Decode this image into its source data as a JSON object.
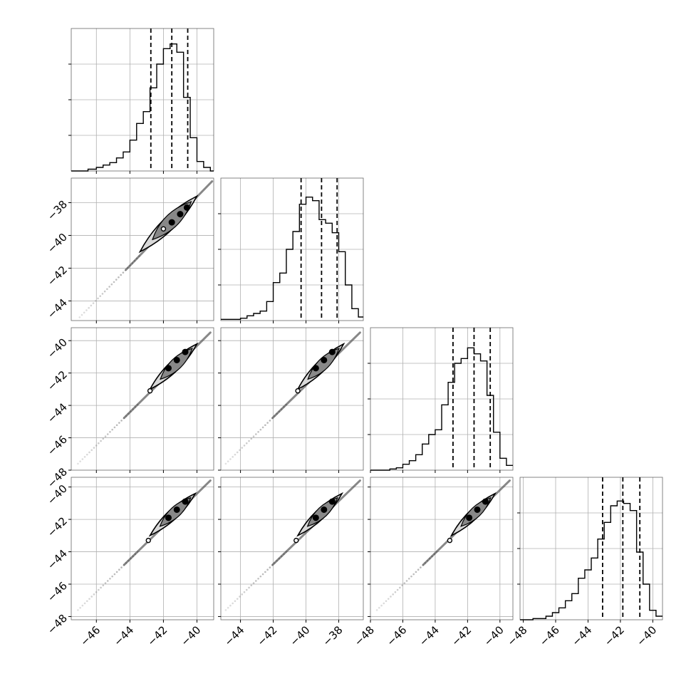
{
  "chart_data": {
    "type": "corner",
    "parameters": 4,
    "grid": true,
    "style": {
      "line_color": "#000000",
      "grid_color": "#b0b0b0",
      "frame_color": "#000000",
      "sample_color": "#888888",
      "contour_fill_outer": "#d8d8d8",
      "contour_fill_inner": "#888888"
    },
    "axes": [
      {
        "index": 0,
        "range": [
          -47.5,
          -39.0
        ],
        "ticks": [
          -46,
          -44,
          -42,
          -40
        ],
        "tick_labels": [
          "−46",
          "−44",
          "−42",
          "−40"
        ],
        "quantiles": [
          -42.75,
          -41.5,
          -40.55
        ],
        "histogram": {
          "bin_edges": [
            -47.5,
            -46.5,
            -46.0,
            -45.6,
            -45.2,
            -44.8,
            -44.4,
            -44.0,
            -43.6,
            -43.2,
            -42.8,
            -42.4,
            -42.0,
            -41.6,
            -41.2,
            -40.8,
            -40.4,
            -40.0,
            -39.6,
            -39.2,
            -39.0
          ],
          "counts": [
            0.0,
            0.015,
            0.03,
            0.05,
            0.07,
            0.11,
            0.16,
            0.26,
            0.4,
            0.5,
            0.7,
            0.9,
            1.03,
            1.07,
            1.0,
            0.62,
            0.28,
            0.08,
            0.03,
            0.0
          ],
          "ylim": [
            0,
            1.2
          ],
          "yticks": [
            0.3,
            0.6,
            0.9
          ]
        }
      },
      {
        "index": 1,
        "range": [
          -45.2,
          -36.5
        ],
        "ticks": [
          -44,
          -42,
          -40,
          -38
        ],
        "tick_labels": [
          "−44",
          "−42",
          "−40",
          "−38"
        ],
        "quantiles": [
          -40.3,
          -39.05,
          -38.1
        ],
        "histogram": {
          "bin_edges": [
            -45.2,
            -44.0,
            -43.6,
            -43.2,
            -42.8,
            -42.4,
            -42.0,
            -41.6,
            -41.2,
            -40.8,
            -40.4,
            -40.0,
            -39.6,
            -39.2,
            -38.8,
            -38.4,
            -38.0,
            -37.6,
            -37.2,
            -36.8,
            -36.5
          ],
          "counts": [
            0.01,
            0.02,
            0.04,
            0.06,
            0.08,
            0.16,
            0.32,
            0.4,
            0.6,
            0.75,
            0.98,
            1.04,
            1.01,
            0.85,
            0.82,
            0.74,
            0.58,
            0.3,
            0.1,
            0.03
          ],
          "ylim": [
            0,
            1.2
          ],
          "yticks": [
            0.3,
            0.6,
            0.9
          ]
        }
      },
      {
        "index": 2,
        "range": [
          -48.0,
          -39.2
        ],
        "ticks": [
          -48,
          -46,
          -44,
          -42,
          -40
        ],
        "tick_labels": [
          "−48",
          "−46",
          "−44",
          "−42",
          "−40"
        ],
        "quantiles": [
          -42.9,
          -41.6,
          -40.6
        ],
        "histogram": {
          "bin_edges": [
            -48.0,
            -46.8,
            -46.4,
            -46.0,
            -45.6,
            -45.2,
            -44.8,
            -44.4,
            -44.0,
            -43.6,
            -43.2,
            -42.8,
            -42.4,
            -42.0,
            -41.6,
            -41.2,
            -40.8,
            -40.4,
            -40.0,
            -39.6,
            -39.2
          ],
          "counts": [
            0.0,
            0.01,
            0.02,
            0.05,
            0.08,
            0.13,
            0.22,
            0.3,
            0.34,
            0.55,
            0.74,
            0.9,
            0.94,
            1.03,
            0.98,
            0.92,
            0.63,
            0.32,
            0.1,
            0.04
          ],
          "ylim": [
            0,
            1.2
          ],
          "yticks": [
            0.3,
            0.6,
            0.9
          ]
        }
      },
      {
        "index": 3,
        "range": [
          -48.2,
          -39.4
        ],
        "ticks": [
          -48,
          -46,
          -44,
          -42,
          -40
        ],
        "tick_labels": [
          "−48",
          "−46",
          "−44",
          "−42",
          "−40"
        ],
        "quantiles": [
          -43.1,
          -41.85,
          -40.8
        ],
        "histogram": {
          "bin_edges": [
            -48.2,
            -47.4,
            -46.6,
            -46.2,
            -45.8,
            -45.4,
            -45.0,
            -44.6,
            -44.2,
            -43.8,
            -43.4,
            -43.0,
            -42.6,
            -42.2,
            -41.8,
            -41.4,
            -41.0,
            -40.6,
            -40.2,
            -39.8,
            -39.4
          ],
          "counts": [
            0.0,
            0.01,
            0.03,
            0.06,
            0.1,
            0.16,
            0.22,
            0.35,
            0.42,
            0.52,
            0.68,
            0.82,
            0.96,
            1.0,
            0.98,
            0.92,
            0.57,
            0.3,
            0.08,
            0.03
          ],
          "ylim": [
            0,
            1.2
          ],
          "yticks": [
            0.3,
            0.6,
            0.9
          ]
        }
      }
    ],
    "pairs": [
      {
        "x": 0,
        "y": 1,
        "sample_start": [
          -47.0,
          -45.0
        ],
        "sample_end": [
          -39.1,
          -36.7
        ],
        "contour_from": [
          -43.4,
          -41.0
        ],
        "contour_to": [
          -40.0,
          -37.6
        ],
        "contour_width": [
          0.16,
          0.38
        ],
        "outlier_point": [
          -42.0,
          -39.6
        ],
        "density_peaks": [
          [
            -41.5,
            -39.2
          ],
          [
            -41.0,
            -38.7
          ],
          [
            -40.6,
            -38.3
          ]
        ]
      },
      {
        "x": 0,
        "y": 2,
        "sample_start": [
          -47.1,
          -47.6
        ],
        "sample_end": [
          -39.2,
          -39.5
        ],
        "contour_from": [
          -42.8,
          -43.0
        ],
        "contour_to": [
          -40.0,
          -40.2
        ],
        "contour_width": [
          0.16,
          0.38
        ],
        "outlier_point": [
          -42.8,
          -43.1
        ],
        "density_peaks": [
          [
            -41.7,
            -41.7
          ],
          [
            -41.2,
            -41.2
          ],
          [
            -40.7,
            -40.7
          ]
        ]
      },
      {
        "x": 1,
        "y": 2,
        "sample_start": [
          -44.9,
          -47.6
        ],
        "sample_end": [
          -36.7,
          -39.5
        ],
        "contour_from": [
          -40.5,
          -43.0
        ],
        "contour_to": [
          -37.7,
          -40.2
        ],
        "contour_width": [
          0.16,
          0.38
        ],
        "outlier_point": [
          -40.5,
          -43.1
        ],
        "density_peaks": [
          [
            -39.4,
            -41.7
          ],
          [
            -38.9,
            -41.2
          ],
          [
            -38.4,
            -40.7
          ]
        ]
      },
      {
        "x": 0,
        "y": 3,
        "sample_start": [
          -47.1,
          -47.6
        ],
        "sample_end": [
          -39.2,
          -39.6
        ],
        "contour_from": [
          -42.8,
          -43.0
        ],
        "contour_to": [
          -40.1,
          -40.4
        ],
        "contour_width": [
          0.16,
          0.38
        ],
        "outlier_point": [
          -42.9,
          -43.3
        ],
        "density_peaks": [
          [
            -41.7,
            -41.9
          ],
          [
            -41.2,
            -41.4
          ],
          [
            -40.7,
            -40.9
          ]
        ]
      },
      {
        "x": 1,
        "y": 3,
        "sample_start": [
          -44.9,
          -47.6
        ],
        "sample_end": [
          -36.7,
          -39.6
        ],
        "contour_from": [
          -40.5,
          -43.0
        ],
        "contour_to": [
          -37.8,
          -40.4
        ],
        "contour_width": [
          0.16,
          0.38
        ],
        "outlier_point": [
          -40.6,
          -43.3
        ],
        "density_peaks": [
          [
            -39.4,
            -41.9
          ],
          [
            -38.9,
            -41.4
          ],
          [
            -38.4,
            -40.9
          ]
        ]
      },
      {
        "x": 2,
        "y": 3,
        "sample_start": [
          -47.6,
          -47.6
        ],
        "sample_end": [
          -39.4,
          -39.6
        ],
        "contour_from": [
          -43.0,
          -43.0
        ],
        "contour_to": [
          -40.3,
          -40.4
        ],
        "contour_width": [
          0.16,
          0.38
        ],
        "outlier_point": [
          -43.1,
          -43.3
        ],
        "density_peaks": [
          [
            -41.9,
            -41.9
          ],
          [
            -41.4,
            -41.4
          ],
          [
            -40.9,
            -40.9
          ]
        ]
      }
    ]
  }
}
